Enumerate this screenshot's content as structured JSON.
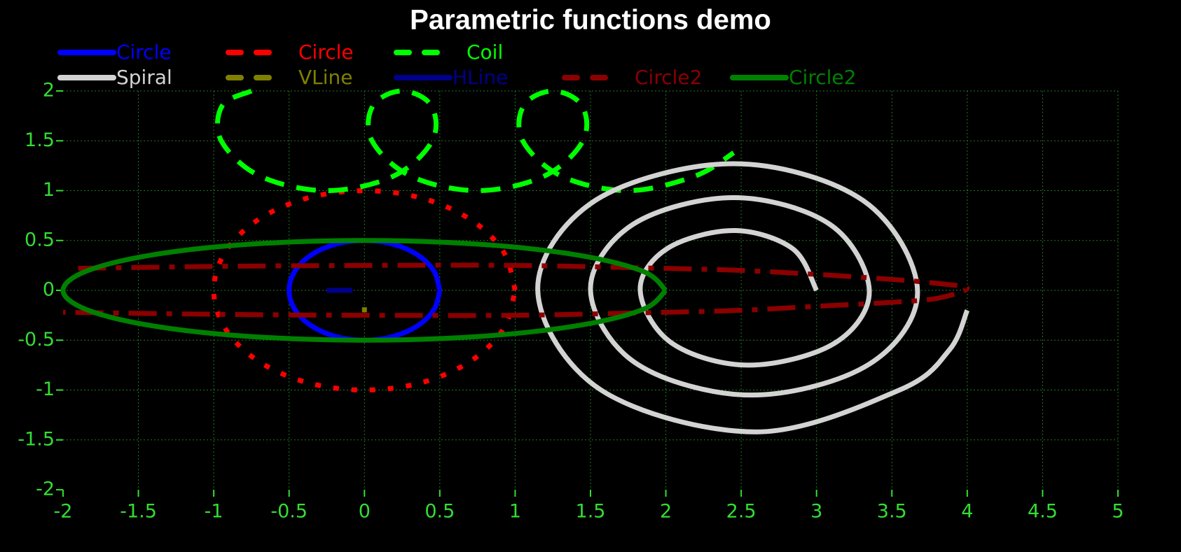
{
  "chart_data": {
    "type": "line",
    "title": "Parametric functions demo",
    "xlim": [
      -2,
      5
    ],
    "ylim": [
      -2,
      2
    ],
    "xticks": [
      -2,
      -1.5,
      -1,
      -0.5,
      0,
      0.5,
      1,
      1.5,
      2,
      2.5,
      3,
      3.5,
      4,
      4.5,
      5
    ],
    "yticks": [
      -2,
      -1.5,
      -1,
      -0.5,
      0,
      0.5,
      1,
      1.5,
      2
    ],
    "grid": true,
    "tick_color": "#33dd33",
    "grid_color": "#1f7a1f",
    "series": [
      {
        "name": "Circle",
        "color": "#0000ff",
        "line": "solid",
        "x": [
          0.5,
          0.462,
          0.354,
          0.191,
          0,
          -0.191,
          -0.354,
          -0.462,
          -0.5,
          -0.462,
          -0.354,
          -0.191,
          0,
          0.191,
          0.354,
          0.462,
          0.5
        ],
        "values": [
          0,
          0.191,
          0.354,
          0.462,
          0.5,
          0.462,
          0.354,
          0.191,
          0,
          -0.191,
          -0.354,
          -0.462,
          -0.5,
          -0.462,
          -0.354,
          -0.191,
          0
        ]
      },
      {
        "name": "Circle",
        "color": "#ff0000",
        "line": "dot",
        "x": [
          1,
          0.924,
          0.707,
          0.383,
          0,
          -0.383,
          -0.707,
          -0.924,
          -1,
          -0.924,
          -0.707,
          -0.383,
          0,
          0.383,
          0.707,
          0.924,
          1
        ],
        "values": [
          0,
          0.383,
          0.707,
          0.924,
          1,
          0.924,
          0.707,
          0.383,
          0,
          -0.383,
          -0.707,
          -0.924,
          -1,
          -0.924,
          -0.707,
          -0.383,
          0
        ]
      },
      {
        "name": "Coil",
        "color": "#00ff00",
        "line": "dash",
        "x": [
          -0.75,
          -0.943,
          -0.95,
          -0.693,
          -0.25,
          0.193,
          0.45,
          0.443,
          0.25,
          0.057,
          0.05,
          0.307,
          0.75,
          1.193,
          1.45,
          1.443,
          1.25,
          1.057,
          1.05,
          1.307,
          1.75,
          2.193,
          2.45
        ],
        "values": [
          2,
          1.854,
          1.5,
          1.146,
          1,
          1.146,
          1.5,
          1.854,
          2,
          1.854,
          1.5,
          1.146,
          1,
          1.146,
          1.5,
          1.854,
          2,
          1.854,
          1.5,
          1.146,
          1,
          1.146,
          1.38
        ]
      },
      {
        "name": "Spiral",
        "color": "#d3d3d3",
        "line": "solid",
        "x": [
          3.0,
          2.84,
          2.45,
          2.01,
          1.83,
          2.04,
          2.55,
          3.12,
          3.35,
          3.09,
          2.45,
          1.78,
          1.5,
          1.81,
          2.57,
          3.35,
          3.67,
          3.31,
          2.45,
          1.53,
          1.15,
          1.57,
          2.6,
          3.55,
          3.88,
          4.0
        ],
        "values": [
          0,
          0.42,
          0.6,
          0.42,
          0,
          -0.53,
          -0.75,
          -0.53,
          0,
          0.66,
          0.93,
          0.66,
          0,
          -0.74,
          -1.05,
          -0.74,
          0,
          0.9,
          1.27,
          0.9,
          0,
          -1.0,
          -1.42,
          -1.0,
          -0.6,
          -0.2
        ]
      },
      {
        "name": "VLine",
        "color": "#808000",
        "line": "dash",
        "x": [
          0,
          0
        ],
        "values": [
          -0.17,
          -0.22
        ]
      },
      {
        "name": "HLine",
        "color": "#00008b",
        "line": "solid",
        "x": [
          -0.25,
          -0.08
        ],
        "values": [
          0,
          0
        ]
      },
      {
        "name": "Circle2",
        "color": "#8b0000",
        "line": "dashdot",
        "x": [
          -1.9,
          -1,
          0,
          1,
          2,
          2.5,
          3,
          3.5,
          3.8,
          4,
          3.8,
          3.5,
          3,
          2.5,
          2,
          1,
          0,
          -1,
          -2
        ],
        "values": [
          0.22,
          0.24,
          0.25,
          0.25,
          0.22,
          0.2,
          0.16,
          0.11,
          0.07,
          0.02,
          -0.08,
          -0.12,
          -0.16,
          -0.2,
          -0.22,
          -0.25,
          -0.25,
          -0.24,
          -0.22
        ]
      },
      {
        "name": "Circle2",
        "color": "#008000",
        "line": "solid",
        "x": [
          2,
          1.848,
          1.414,
          0.766,
          0,
          -0.766,
          -1.414,
          -1.848,
          -2,
          -1.848,
          -1.414,
          -0.766,
          0,
          0.766,
          1.414,
          1.848,
          2
        ],
        "values": [
          0,
          0.191,
          0.354,
          0.462,
          0.5,
          0.462,
          0.354,
          0.191,
          0,
          -0.191,
          -0.354,
          -0.462,
          -0.5,
          -0.462,
          -0.354,
          -0.191,
          0
        ]
      }
    ]
  }
}
